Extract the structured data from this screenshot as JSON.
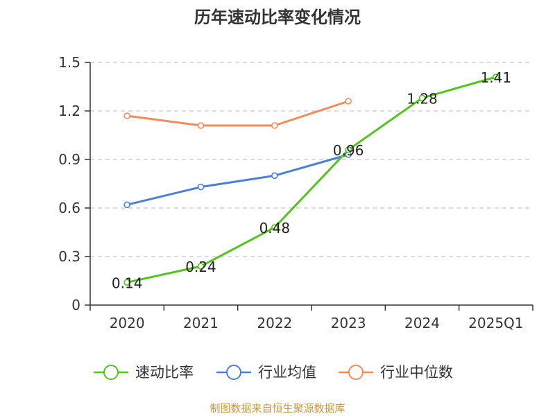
{
  "chart_data": {
    "type": "line",
    "title": "历年速动比率变化情况",
    "categories": [
      "2020",
      "2021",
      "2022",
      "2023",
      "2024",
      "2025Q1"
    ],
    "y_ticks": [
      "0",
      "0.3",
      "0.6",
      "0.9",
      "1.2",
      "1.5"
    ],
    "ylim": [
      0,
      1.5
    ],
    "xlabel": "",
    "ylabel": "",
    "grid": true,
    "legend_position": "bottom",
    "series": [
      {
        "name": "速动比率",
        "color": "#52c41a",
        "values": [
          0.14,
          0.24,
          0.48,
          0.96,
          1.28,
          1.41
        ],
        "data_labels": [
          "0.14",
          "0.24",
          "0.48",
          "0.96",
          "1.28",
          "1.41"
        ]
      },
      {
        "name": "行业均值",
        "color": "#4a7fd8",
        "values": [
          0.62,
          0.73,
          0.8,
          0.93,
          null,
          null
        ]
      },
      {
        "name": "行业中位数",
        "color": "#f5895a",
        "values": [
          1.17,
          1.11,
          1.11,
          1.26,
          null,
          null
        ]
      }
    ]
  },
  "footer": {
    "source": "制图数据来自恒生聚源数据库"
  }
}
